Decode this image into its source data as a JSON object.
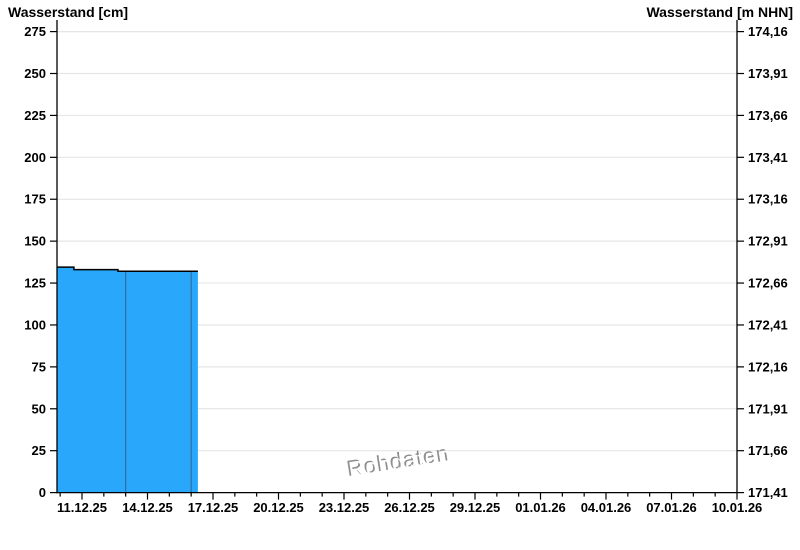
{
  "titles": {
    "left": "Wasserstand [cm]",
    "right": "Wasserstand [m NHN]"
  },
  "chart_data": {
    "type": "area",
    "title": "",
    "xlabel": "",
    "ylabel_left": "Wasserstand [cm]",
    "ylabel_right": "Wasserstand [m NHN]",
    "watermark": "Rohdaten",
    "grid": "horizontal",
    "legend": "none",
    "y_left_axis": {
      "min": 0,
      "max": 275,
      "tick_step": 25,
      "tick_labels": [
        "0",
        "25",
        "50",
        "75",
        "100",
        "125",
        "150",
        "175",
        "200",
        "225",
        "250",
        "275"
      ]
    },
    "y_right_axis": {
      "min": 171.41,
      "max": 174.16,
      "tick_step": 0.25,
      "tick_labels": [
        "171,41",
        "171,66",
        "171,91",
        "172,16",
        "172,41",
        "172,66",
        "172,91",
        "173,16",
        "173,41",
        "173,66",
        "173,91",
        "174,16"
      ]
    },
    "x_axis": {
      "tick_labels": [
        "11.12.25",
        "14.12.25",
        "17.12.25",
        "20.12.25",
        "23.12.25",
        "26.12.25",
        "29.12.25",
        "01.01.26",
        "04.01.26",
        "07.01.26",
        "10.01.26"
      ],
      "minor_tick_every_days": 1,
      "major_tick_every_days": 3,
      "start_day_offset": -1.15,
      "end_day_offset": 30
    },
    "series": [
      {
        "name": "Wasserstand Rohdaten",
        "unit": "cm",
        "points_day_value": [
          [
            -1.15,
            134.5
          ],
          [
            -0.37,
            134.5
          ],
          [
            -0.37,
            133.0
          ],
          [
            1.65,
            133.0
          ],
          [
            1.65,
            132.0
          ],
          [
            5.31,
            132.0
          ]
        ]
      }
    ],
    "segment_boundary_days": [
      2,
      5
    ],
    "colors": {
      "area_fill": "#29a8fb",
      "area_outline": "#000000",
      "segment_line": "#2f6f9f",
      "gridline": "#e6e6e6",
      "axis": "#000000",
      "text": "#000000",
      "watermark_gray": "#8f8f8f",
      "watermark_highlight": "#ffffff",
      "background": "#ffffff"
    }
  }
}
